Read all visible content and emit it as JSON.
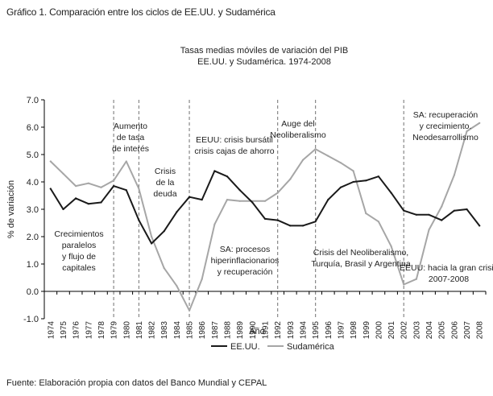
{
  "figure_caption": "Gráfico 1. Comparación entre los ciclos de EE.UU. y Sudamérica",
  "source": "Fuente: Elaboración propia con datos del Banco Mundial y CEPAL",
  "colors": {
    "usa": "#1a1a1a",
    "sudamerica": "#a6a6a6",
    "grid": "#888888"
  },
  "chart_data": {
    "type": "line",
    "title": "Tasas medias móviles de variación del PIB",
    "subtitle": "EE.UU. y Sudamérica. 1974-2008",
    "xlabel": "Año",
    "ylabel": "% de variación",
    "ylim": [
      -1.0,
      7.0
    ],
    "y_ticks": [
      "-1.0",
      "0.0",
      "1.0",
      "2.0",
      "3.0",
      "4.0",
      "5.0",
      "6.0",
      "7.0"
    ],
    "x": [
      "1974",
      "1975",
      "1976",
      "1977",
      "1978",
      "1979",
      "1980",
      "1981",
      "1982",
      "1983",
      "1984",
      "1985",
      "1986",
      "1987",
      "1988",
      "1989",
      "1990",
      "1991",
      "1992",
      "1993",
      "1994",
      "1995",
      "1996",
      "1997",
      "1998",
      "1999",
      "2000",
      "2001",
      "2002",
      "2003",
      "2004",
      "2005",
      "2006",
      "2007",
      "2008"
    ],
    "series": [
      {
        "name": "EE.UU.",
        "values": [
          3.75,
          3.0,
          3.4,
          3.2,
          3.25,
          3.85,
          3.7,
          2.6,
          1.75,
          2.2,
          2.9,
          3.45,
          3.35,
          4.4,
          4.2,
          3.7,
          3.25,
          2.65,
          2.6,
          2.4,
          2.4,
          2.55,
          3.35,
          3.8,
          4.0,
          4.05,
          4.2,
          3.6,
          2.95,
          2.8,
          2.8,
          2.6,
          2.95,
          3.0,
          2.4
        ]
      },
      {
        "name": "Sudamérica",
        "values": [
          4.75,
          4.3,
          3.85,
          3.95,
          3.8,
          4.05,
          4.75,
          3.75,
          2.0,
          0.85,
          0.2,
          -0.7,
          0.45,
          2.45,
          3.35,
          3.3,
          3.3,
          3.3,
          3.6,
          4.1,
          4.8,
          5.2,
          4.95,
          4.7,
          4.4,
          2.85,
          2.55,
          1.65,
          0.25,
          0.45,
          2.25,
          3.1,
          4.25,
          5.85,
          6.15
        ]
      }
    ],
    "vlines_at": [
      "1979",
      "1981",
      "1985",
      "1992",
      "1995",
      "2002"
    ],
    "annotations": [
      {
        "id": "crecimientos",
        "lines": [
          "Crecimientos",
          "paralelos",
          "y flujo de",
          "capitales"
        ]
      },
      {
        "id": "aumento",
        "lines": [
          "Aumento",
          "de tasa",
          "de interés"
        ]
      },
      {
        "id": "crisis-deuda",
        "lines": [
          "Crisis",
          "de la",
          "deuda"
        ]
      },
      {
        "id": "eeuu-crisis",
        "lines": [
          "EEUU: crisis bursátil",
          "crisis cajas de ahorro"
        ]
      },
      {
        "id": "sa-procesos",
        "lines": [
          "SA: procesos",
          "hiperinflacionarios",
          "y recuperación"
        ]
      },
      {
        "id": "auge",
        "lines": [
          "Auge del",
          "Neoliberalismo"
        ]
      },
      {
        "id": "crisis-neolib",
        "lines": [
          "Crisis del Neoliberalismo,",
          "Turquía, Brasil y Argentina"
        ]
      },
      {
        "id": "sa-recuperacion",
        "lines": [
          "SA: recuperación",
          "y crecimiento.",
          "Neodesarrollismo"
        ]
      },
      {
        "id": "eeuu-gran-crisis",
        "lines": [
          "EEUU: hacia la gran crisis",
          "2007-2008"
        ]
      }
    ]
  }
}
